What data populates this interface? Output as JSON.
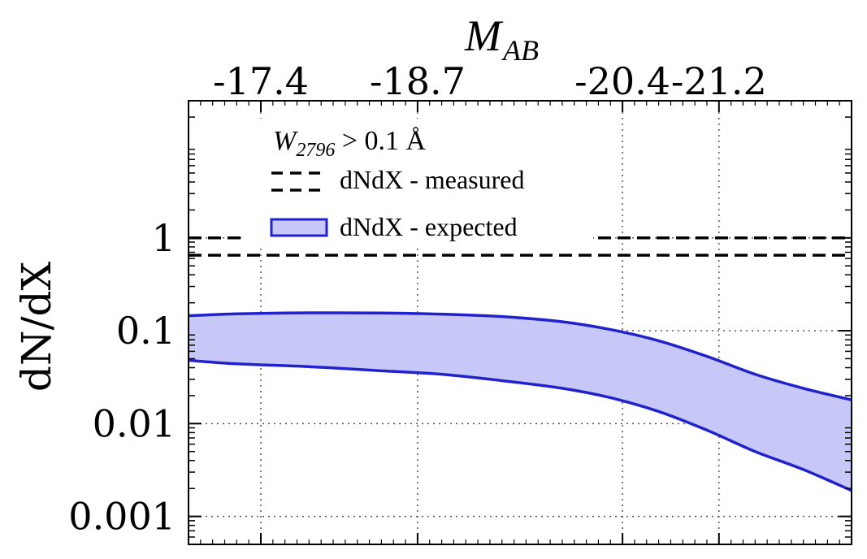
{
  "chart_data": {
    "type": "area",
    "title": "",
    "xlabel": "M",
    "xlabel_subscript": "AB",
    "ylabel": "dN/dX",
    "yscale": "log",
    "ylim": [
      0.0005,
      30
    ],
    "xlim": [
      -16.8,
      -22.3
    ],
    "top_ticks": [
      {
        "label": "-17.4",
        "value": -17.4
      },
      {
        "label": "-18.7",
        "value": -18.7
      },
      {
        "label": "-20.4",
        "value": -20.4
      },
      {
        "label": "-21.2",
        "value": -21.2
      }
    ],
    "y_ticks": [
      {
        "label": "1",
        "value": 1
      },
      {
        "label": "0.1",
        "value": 0.1
      },
      {
        "label": "0.01",
        "value": 0.01
      },
      {
        "label": "0.001",
        "value": 0.001
      }
    ],
    "legend": {
      "title": "W",
      "title_subscript": "2796",
      "title_rest": " > 0.1 Å",
      "entries": [
        "dNdX - measured",
        "dNdX - expected"
      ]
    },
    "series": [
      {
        "name": "dNdX - measured (upper)",
        "style": "dashed",
        "color": "#000000",
        "x": [
          -16.8,
          -22.3
        ],
        "y": [
          1.0,
          1.0
        ]
      },
      {
        "name": "dNdX - measured (lower)",
        "style": "dashed",
        "color": "#000000",
        "x": [
          -16.8,
          -22.3
        ],
        "y": [
          0.65,
          0.65
        ]
      },
      {
        "name": "dNdX - expected",
        "style": "band",
        "color": "#2222cc",
        "fill": "#c8c8f8",
        "x": [
          -16.8,
          -17.2,
          -17.8,
          -18.4,
          -18.9,
          -19.4,
          -19.9,
          -20.3,
          -20.7,
          -21.1,
          -21.5,
          -21.9,
          -22.3
        ],
        "upper": [
          0.145,
          0.152,
          0.156,
          0.155,
          0.151,
          0.142,
          0.125,
          0.103,
          0.078,
          0.053,
          0.034,
          0.024,
          0.018
        ],
        "lower": [
          0.048,
          0.044,
          0.041,
          0.037,
          0.034,
          0.029,
          0.024,
          0.019,
          0.0135,
          0.0085,
          0.005,
          0.0032,
          0.0019
        ]
      }
    ]
  }
}
